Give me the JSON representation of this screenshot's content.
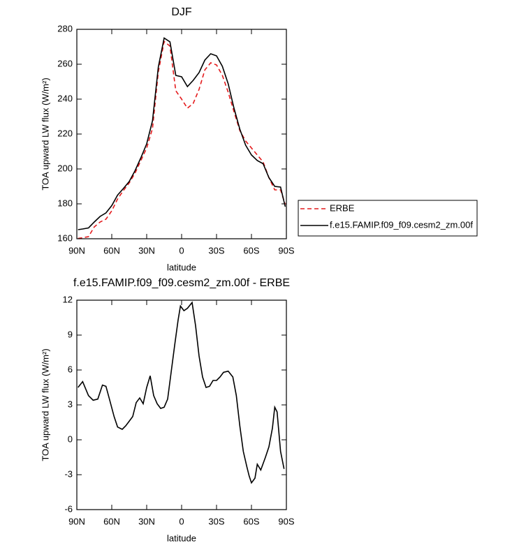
{
  "chart_data": [
    {
      "type": "line",
      "title": "DJF",
      "xlabel": "latitude",
      "ylabel": "TOA upward LW flux (W/m²)",
      "x": [
        89,
        85,
        80,
        75,
        70,
        65,
        60,
        55,
        50,
        45,
        40,
        35,
        30,
        25,
        20,
        15,
        10,
        5,
        0,
        -5,
        -10,
        -15,
        -20,
        -25,
        -30,
        -35,
        -40,
        -45,
        -50,
        -55,
        -60,
        -65,
        -70,
        -75,
        -80,
        -85,
        -89
      ],
      "series": [
        {
          "name": "ERBE",
          "color": "#e41a1c",
          "dash": true,
          "values": [
            160.2,
            160.6,
            161.2,
            166.8,
            169.6,
            171.2,
            176,
            182.8,
            187.6,
            192,
            197.6,
            204.8,
            212,
            223.2,
            255.6,
            273,
            270.4,
            244.8,
            240,
            234.8,
            237.6,
            245.6,
            256.8,
            260.8,
            259.6,
            253.6,
            244,
            232.8,
            222,
            216,
            212,
            208,
            204,
            195,
            188,
            188,
            179.6
          ]
        },
        {
          "name": "f.e15.FAMIP.f09_f09.cesm2_zm.00f",
          "color": "#000000",
          "dash": false,
          "values": [
            165.2,
            165.6,
            166.2,
            169.6,
            172.8,
            174.8,
            179,
            185,
            188.8,
            192.8,
            199,
            206.4,
            214.4,
            227.6,
            258.4,
            275,
            272.8,
            253.6,
            252.8,
            247.2,
            250.8,
            255.2,
            262.4,
            266,
            264.8,
            258.8,
            248.8,
            234.8,
            222.8,
            213.6,
            208,
            204.8,
            203,
            195,
            190,
            189.6,
            178.4
          ]
        }
      ],
      "xlim": [
        90,
        -90
      ],
      "xticks": [
        {
          "value": 90,
          "label": "90N"
        },
        {
          "value": 60,
          "label": "60N"
        },
        {
          "value": 30,
          "label": "30N"
        },
        0,
        {
          "value": -30,
          "label": "30S"
        },
        {
          "value": -60,
          "label": "60S"
        },
        {
          "value": -90,
          "label": "90S"
        }
      ],
      "ylim": [
        160,
        280
      ],
      "yticks": [
        160,
        180,
        200,
        220,
        240,
        260,
        280
      ],
      "legend": "right"
    },
    {
      "type": "line",
      "title": "f.e15.FAMIP.f09_f09.cesm2_zm.00f - ERBE",
      "xlabel": "latitude",
      "ylabel": "TOA upward LW flux (W/m²)",
      "x": [
        89,
        85,
        80,
        76,
        72,
        68,
        65,
        62,
        58,
        55,
        51,
        48,
        45,
        42,
        39,
        36,
        33,
        30,
        27,
        24,
        21,
        18,
        15,
        12,
        9,
        6,
        3,
        1,
        -2,
        -5,
        -9,
        -12,
        -15,
        -18,
        -21,
        -24,
        -27,
        -30,
        -33,
        -36,
        -40,
        -44,
        -47,
        -50,
        -53,
        -56,
        -58,
        -60,
        -63,
        -65,
        -68,
        -72,
        -75,
        -78,
        -80,
        -82,
        -85,
        -88
      ],
      "values": [
        4.5,
        5.0,
        3.8,
        3.4,
        3.5,
        4.7,
        4.6,
        3.5,
        2.0,
        1.1,
        0.9,
        1.2,
        1.6,
        2.0,
        3.2,
        3.6,
        3.1,
        4.5,
        5.5,
        3.8,
        3.1,
        2.7,
        2.8,
        3.5,
        5.8,
        8.1,
        10.3,
        11.5,
        11.1,
        11.3,
        11.8,
        9.8,
        7.2,
        5.4,
        4.5,
        4.6,
        5.1,
        5.1,
        5.4,
        5.8,
        5.9,
        5.4,
        3.8,
        1.2,
        -1.0,
        -2.3,
        -3.1,
        -3.7,
        -3.3,
        -2.1,
        -2.6,
        -1.5,
        -0.6,
        1.0,
        2.8,
        2.4,
        -1.0,
        -2.5
      ],
      "color": "#000000",
      "xlim": [
        90,
        -90
      ],
      "xticks": [
        {
          "value": 90,
          "label": "90N"
        },
        {
          "value": 60,
          "label": "60N"
        },
        {
          "value": 30,
          "label": "30N"
        },
        0,
        {
          "value": -30,
          "label": "30S"
        },
        {
          "value": -60,
          "label": "60S"
        },
        {
          "value": -90,
          "label": "90S"
        }
      ],
      "ylim": [
        -6,
        12
      ],
      "yticks": [
        -6,
        -3,
        0,
        3,
        6,
        9,
        12
      ]
    }
  ]
}
